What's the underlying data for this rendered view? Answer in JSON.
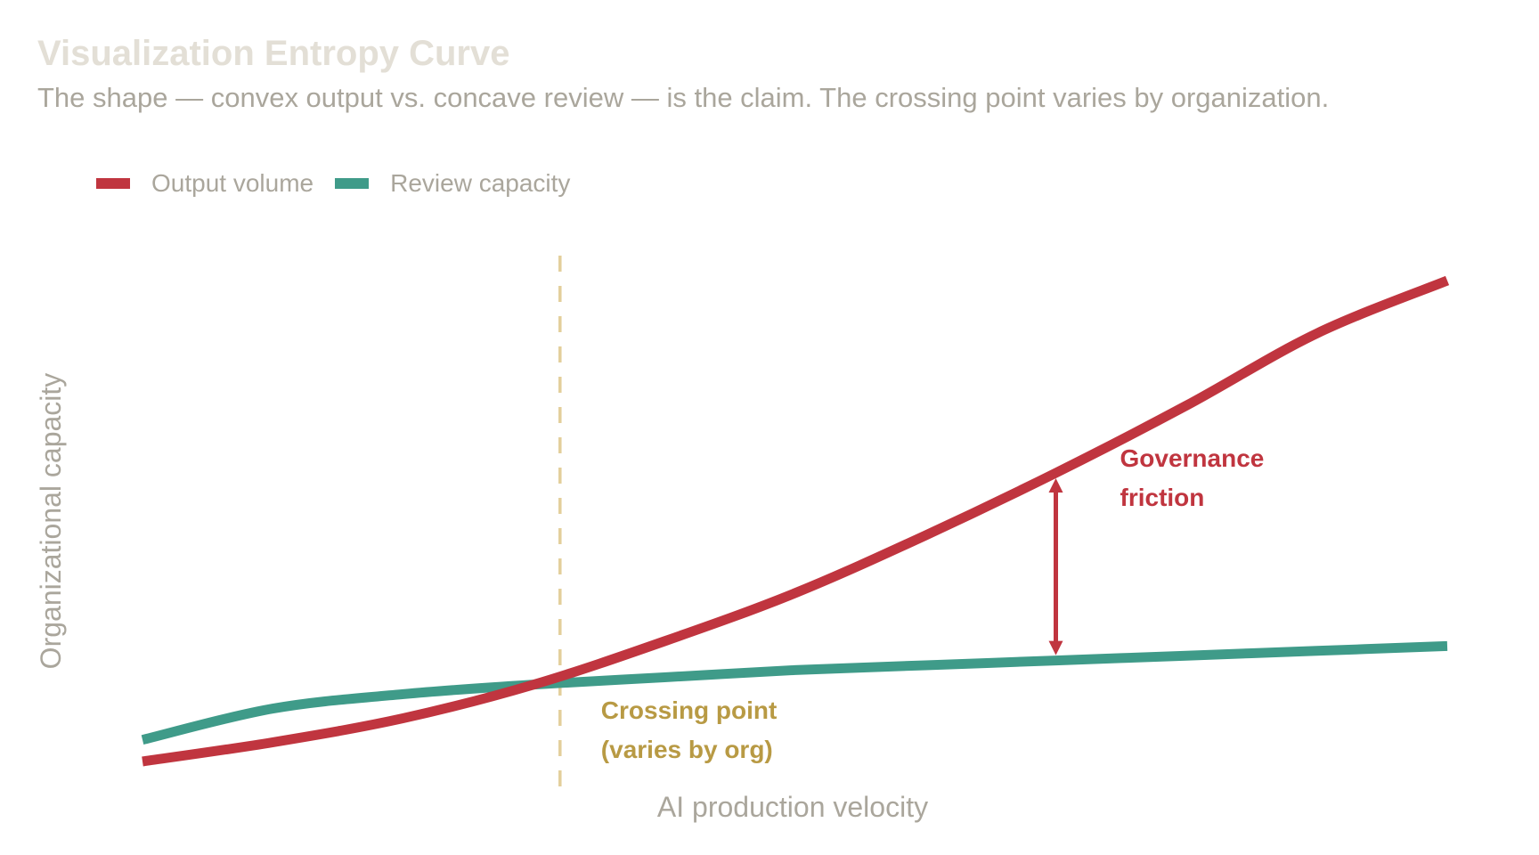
{
  "title": "Visualization Entropy Curve",
  "subtitle": "The shape — convex output vs. concave review — is the claim. The crossing point varies by organization.",
  "colors": {
    "output": "#c0353f",
    "review": "#3f9b89",
    "crossing": "#b89a44",
    "crossing_line": "#e3cf9b",
    "muted_text": "#aaa69c",
    "title_text": "#e3dfd6"
  },
  "chart_data": {
    "type": "line",
    "xlabel": "AI production velocity",
    "ylabel": "Organizational capacity",
    "xlim": [
      0,
      1
    ],
    "ylim": [
      0,
      1
    ],
    "grid": false,
    "legend_position": "top-left",
    "series": [
      {
        "name": "Output volume",
        "color": "#c0353f",
        "x": [
          0,
          0.1,
          0.2,
          0.3,
          0.4,
          0.5,
          0.6,
          0.7,
          0.8,
          0.9,
          1.0
        ],
        "y": [
          0.0,
          0.04,
          0.09,
          0.16,
          0.25,
          0.35,
          0.47,
          0.6,
          0.74,
          0.89,
          1.0
        ]
      },
      {
        "name": "Review capacity",
        "color": "#3f9b89",
        "x": [
          0,
          0.1,
          0.2,
          0.3,
          0.4,
          0.5,
          0.6,
          0.7,
          0.8,
          0.9,
          1.0
        ],
        "y": [
          0.045,
          0.11,
          0.14,
          0.16,
          0.175,
          0.19,
          0.2,
          0.21,
          0.22,
          0.23,
          0.24
        ]
      }
    ],
    "annotations": {
      "crossing": {
        "x": 0.32,
        "line1": "Crossing point",
        "line2": "(varies by org)"
      },
      "friction": {
        "x": 0.7,
        "line1": "Governance",
        "line2": "friction"
      }
    }
  }
}
